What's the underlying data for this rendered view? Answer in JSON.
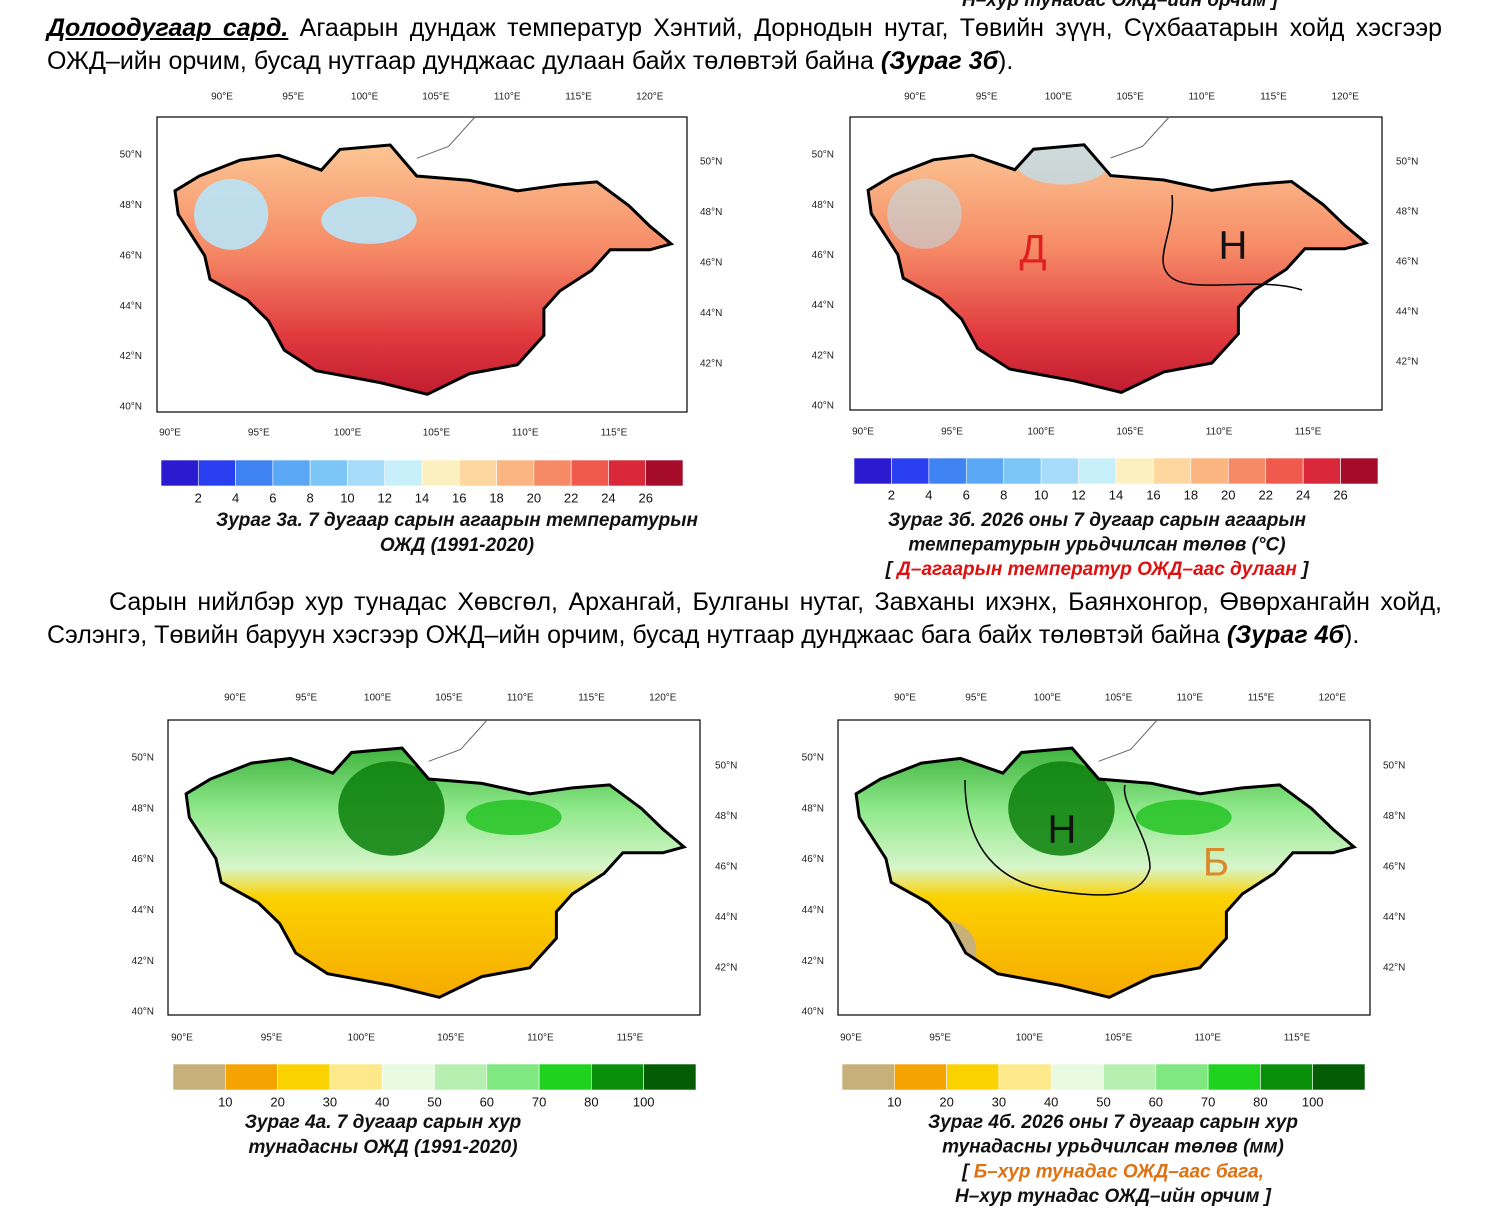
{
  "header_fragment": "Н–хур тунадас ОЖД–ийн орчим ]",
  "paragraph_1": {
    "lead": "Долоодугаар сард.",
    "body": " Агаарын дундаж температур Хэнтий, Дорнодын нутаг, Төвийн зүүн, Сүхбаатарын хойд хэсгээр ОЖД–ийн орчим, бусад нутгаар дунджаас дулаан байх төлөвтэй байна ",
    "ref": "(Зураг 3б",
    "end": ")."
  },
  "paragraph_2": {
    "body": "Сарын нийлбэр хур тунадас Хөвсгөл, Архангай, Булганы нутаг, Завханы ихэнх, Баянхонгор, Өвөрхангайн хойд, Сэлэнгэ, Төвийн баруун хэсгээр ОЖД–ийн орчим, бусад нутгаар дунджаас бага байх төлөвтэй байна ",
    "ref": "(Зураг 4б",
    "end": ")."
  },
  "figures": [
    {
      "kind": "temperature",
      "top_labels": [
        "90°E",
        "95°E",
        "100°E",
        "105°E",
        "110°E",
        "115°E",
        "120°E"
      ],
      "left_labels": [
        "50°N",
        "48°N",
        "46°N",
        "44°N",
        "42°N",
        "40°N"
      ],
      "right_labels": [
        "50°N",
        "48°N",
        "46°N",
        "44°N",
        "42°N"
      ],
      "bottom_labels": [
        "90°E",
        "95°E",
        "100°E",
        "105°E",
        "110°E",
        "115°E"
      ],
      "colorbar": {
        "colors": [
          "#2b1bd0",
          "#2a3ff0",
          "#3f83f3",
          "#5aa8f5",
          "#7cc6f7",
          "#a6dcf9",
          "#c8f0fb",
          "#fdf0c0",
          "#fdd6a0",
          "#fbb580",
          "#f68a66",
          "#ef5a4c",
          "#d9283a",
          "#a50c2a"
        ],
        "labels": [
          "2",
          "4",
          "6",
          "8",
          "10",
          "12",
          "14",
          "16",
          "18",
          "20",
          "22",
          "24",
          "26"
        ]
      },
      "caption": [
        [
          {
            "text": "Зураг 3а. 7 дугаар сарын агаарын температурын"
          }
        ],
        [
          {
            "text": "ОЖД (1991-2020)"
          }
        ]
      ],
      "map_letters": []
    },
    {
      "kind": "temperature",
      "top_labels": [
        "90°E",
        "95°E",
        "100°E",
        "105°E",
        "110°E",
        "115°E",
        "120°E"
      ],
      "left_labels": [
        "50°N",
        "48°N",
        "46°N",
        "44°N",
        "42°N",
        "40°N"
      ],
      "right_labels": [
        "50°N",
        "48°N",
        "46°N",
        "44°N",
        "42°N"
      ],
      "bottom_labels": [
        "90°E",
        "95°E",
        "100°E",
        "105°E",
        "110°E",
        "115°E"
      ],
      "colorbar": {
        "colors": [
          "#2b1bd0",
          "#2a3ff0",
          "#3f83f3",
          "#5aa8f5",
          "#7cc6f7",
          "#a6dcf9",
          "#c8f0fb",
          "#fdf0c0",
          "#fdd6a0",
          "#fbb580",
          "#f68a66",
          "#ef5a4c",
          "#d9283a",
          "#a50c2a"
        ],
        "labels": [
          "2",
          "4",
          "6",
          "8",
          "10",
          "12",
          "14",
          "16",
          "18",
          "20",
          "22",
          "24",
          "26"
        ]
      },
      "caption": [
        [
          {
            "text": "Зураг 3б. 2026 оны 7 дугаар сарын агаарын"
          }
        ],
        [
          {
            "text": "температурын урьдчилсан төлөв (°C)"
          }
        ],
        [
          {
            "text": "[ "
          },
          {
            "text": "Д–агаарын температур ОЖД–аас дулаан",
            "color": "#e01010"
          },
          {
            "text": " ]"
          }
        ]
      ],
      "map_letters": [
        {
          "text": "Д",
          "color": "#e02020"
        },
        {
          "text": "Н",
          "color": "#111111"
        }
      ]
    },
    {
      "kind": "precipitation",
      "top_labels": [
        "90°E",
        "95°E",
        "100°E",
        "105°E",
        "110°E",
        "115°E",
        "120°E"
      ],
      "left_labels": [
        "50°N",
        "48°N",
        "46°N",
        "44°N",
        "42°N",
        "40°N"
      ],
      "right_labels": [
        "50°N",
        "48°N",
        "46°N",
        "44°N",
        "42°N"
      ],
      "bottom_labels": [
        "90°E",
        "95°E",
        "100°E",
        "105°E",
        "110°E",
        "115°E"
      ],
      "colorbar": {
        "colors": [
          "#c8b07a",
          "#f5a300",
          "#fbd200",
          "#fde88a",
          "#e8fbe0",
          "#b7efb0",
          "#80e880",
          "#1ed21e",
          "#0a8f0a",
          "#045c04"
        ],
        "labels": [
          "10",
          "20",
          "30",
          "40",
          "50",
          "60",
          "70",
          "80",
          "100"
        ]
      },
      "caption": [
        [
          {
            "text": "Зураг 4а. 7 дугаар сарын хур"
          }
        ],
        [
          {
            "text": "тунадасны ОЖД (1991-2020)"
          }
        ]
      ],
      "map_letters": []
    },
    {
      "kind": "precipitation",
      "top_labels": [
        "90°E",
        "95°E",
        "100°E",
        "105°E",
        "110°E",
        "115°E",
        "120°E"
      ],
      "left_labels": [
        "50°N",
        "48°N",
        "46°N",
        "44°N",
        "42°N",
        "40°N"
      ],
      "right_labels": [
        "50°N",
        "48°N",
        "46°N",
        "44°N",
        "42°N"
      ],
      "bottom_labels": [
        "90°E",
        "95°E",
        "100°E",
        "105°E",
        "110°E",
        "115°E"
      ],
      "colorbar": {
        "colors": [
          "#c8b07a",
          "#f5a300",
          "#fbd200",
          "#fde88a",
          "#e8fbe0",
          "#b7efb0",
          "#80e880",
          "#1ed21e",
          "#0a8f0a",
          "#045c04"
        ],
        "labels": [
          "10",
          "20",
          "30",
          "40",
          "50",
          "60",
          "70",
          "80",
          "100"
        ]
      },
      "caption": [
        [
          {
            "text": "Зураг 4б. 2026 оны 7 дугаар сарын хур"
          }
        ],
        [
          {
            "text": "тунадасны урьдчилсан төлөв (мм)"
          }
        ],
        [
          {
            "text": "[ "
          },
          {
            "text": "Б–хур тунадас ОЖД–аас бага,",
            "color": "#e07010"
          }
        ],
        [
          {
            "text": "Н–хур тунадас ОЖД–ийн орчим ]"
          }
        ]
      ],
      "map_letters": [
        {
          "text": "Н",
          "color": "#111111"
        },
        {
          "text": "Б",
          "color": "#d98a2a"
        }
      ]
    }
  ]
}
